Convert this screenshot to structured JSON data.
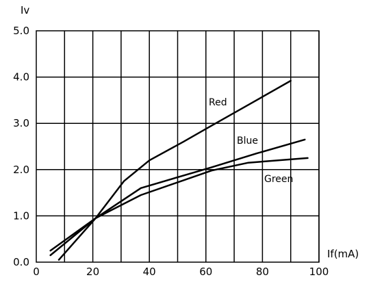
{
  "chart_data": {
    "type": "line",
    "title": "",
    "xlabel": "If(mA)",
    "ylabel": "Iv",
    "xlim": [
      0,
      100
    ],
    "ylim": [
      0,
      5
    ],
    "grid": true,
    "x_ticks": [
      "0",
      "20",
      "40",
      "60",
      "80",
      "100"
    ],
    "y_ticks": [
      "0.0",
      "1.0",
      "2.0",
      "3.0",
      "4.0",
      "5.0"
    ],
    "x_gridlines": [
      10,
      20,
      30,
      40,
      50,
      60,
      70,
      80,
      90,
      100
    ],
    "series": [
      {
        "name": "Red",
        "x": [
          8,
          21,
          31,
          40,
          52,
          62,
          75,
          90
        ],
        "y": [
          0.05,
          0.95,
          1.75,
          2.2,
          2.6,
          2.95,
          3.4,
          3.92
        ]
      },
      {
        "name": "Blue",
        "x": [
          5,
          21,
          37,
          62,
          78,
          95
        ],
        "y": [
          0.15,
          0.95,
          1.6,
          2.05,
          2.35,
          2.65
        ]
      },
      {
        "name": "Green",
        "x": [
          5,
          21,
          37,
          62,
          75,
          96
        ],
        "y": [
          0.25,
          0.95,
          1.45,
          1.98,
          2.15,
          2.25
        ]
      }
    ]
  }
}
